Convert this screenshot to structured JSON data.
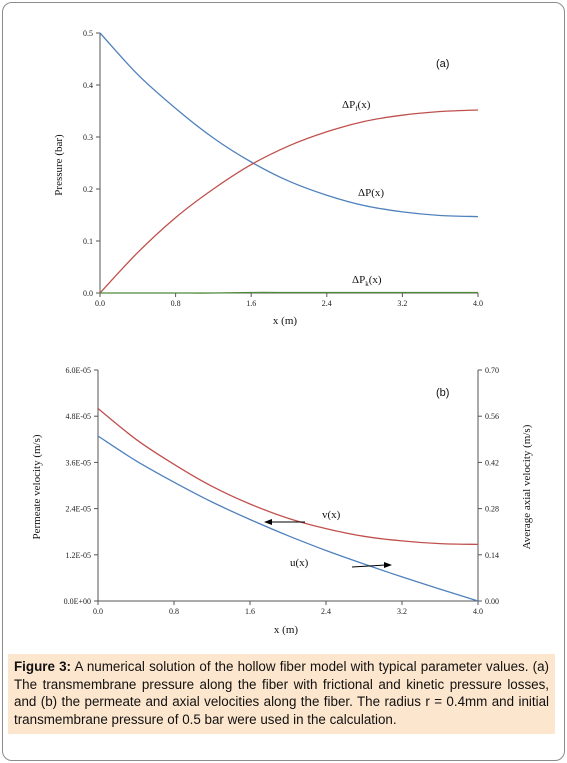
{
  "chart_data": [
    {
      "type": "line",
      "panel_label": "(a)",
      "xlabel": "x (m)",
      "ylabel": "Pressure (bar)",
      "xlim": [
        0,
        4
      ],
      "ylim": [
        0,
        0.5
      ],
      "x_ticks": [
        "0.0",
        "0.8",
        "1.6",
        "2.4",
        "3.2",
        "4.0"
      ],
      "y_ticks": [
        "0.0",
        "0.1",
        "0.2",
        "0.3",
        "0.4",
        "0.5"
      ],
      "grid": false,
      "x": [
        0,
        0.4,
        0.8,
        1.2,
        1.6,
        2.0,
        2.4,
        2.8,
        3.2,
        3.6,
        4.0
      ],
      "series": [
        {
          "name": "ΔP(x)",
          "label_main": "ΔP",
          "label_sub": "",
          "label_arg": "(x)",
          "color": "#4f81bd",
          "values": [
            0.5,
            0.42,
            0.355,
            0.298,
            0.252,
            0.215,
            0.188,
            0.168,
            0.156,
            0.149,
            0.147
          ]
        },
        {
          "name": "ΔPf(x)",
          "label_main": "ΔP",
          "label_sub": "f",
          "label_arg": "(x)",
          "color": "#c0504d",
          "values": [
            0.0,
            0.078,
            0.145,
            0.2,
            0.247,
            0.283,
            0.31,
            0.33,
            0.342,
            0.349,
            0.352
          ]
        },
        {
          "name": "ΔPk(x)",
          "label_main": "ΔP",
          "label_sub": "k",
          "label_arg": "(x)",
          "color": "#4f8a3a",
          "values": [
            0.0,
            0.0,
            0.0,
            0.0,
            0.001,
            0.001,
            0.001,
            0.001,
            0.001,
            0.001,
            0.001
          ]
        }
      ]
    },
    {
      "type": "line",
      "panel_label": "(b)",
      "xlabel": "x (m)",
      "ylabel": "Permeate velocity (m/s)",
      "ylabel_right": "Average axial velocity (m/s)",
      "xlim": [
        0,
        4
      ],
      "ylim": [
        0,
        6e-05
      ],
      "ylim_right": [
        0,
        0.7
      ],
      "x_ticks": [
        "0.0",
        "0.8",
        "1.6",
        "2.4",
        "3.2",
        "4.0"
      ],
      "y_ticks": [
        "0.0E+00",
        "1.2E-05",
        "2.4E-05",
        "3.6E-05",
        "4.8E-05",
        "6.0E-05"
      ],
      "y_ticks_right": [
        "0.00",
        "0.14",
        "0.28",
        "0.42",
        "0.56",
        "0.70"
      ],
      "grid": false,
      "x": [
        0,
        0.4,
        0.8,
        1.2,
        1.6,
        2.0,
        2.4,
        2.8,
        3.2,
        3.6,
        4.0
      ],
      "series": [
        {
          "name": "v(x)",
          "axis": "left",
          "color": "#c0504d",
          "values": [
            5e-05,
            4.2e-05,
            3.55e-05,
            2.98e-05,
            2.52e-05,
            2.15e-05,
            1.88e-05,
            1.68e-05,
            1.56e-05,
            1.49e-05,
            1.47e-05
          ]
        },
        {
          "name": "u(x)",
          "axis": "right",
          "color": "#4f81bd",
          "values": [
            0.5,
            0.425,
            0.36,
            0.3,
            0.247,
            0.198,
            0.153,
            0.112,
            0.073,
            0.036,
            0.0
          ]
        }
      ]
    }
  ],
  "caption": {
    "label": "Figure 3:",
    "text": " A numerical solution of the hollow fiber model with typical parameter values. (a) The transmembrane pressure along the fiber with frictional and kinetic pressure losses, and (b) the permeate and axial velocities along the fiber. The radius r = 0.4mm and initial transmembrane pressure of 0.5 bar were used in the calculation."
  }
}
